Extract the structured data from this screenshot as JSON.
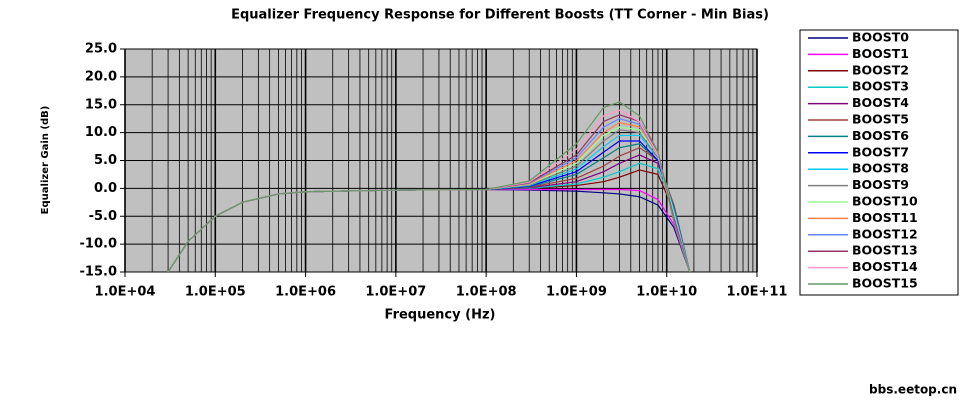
{
  "chart_data": {
    "type": "line",
    "title": "Equalizer Frequency Response for Different Boosts (TT Corner - Min Bias)",
    "x_label": "Frequency (Hz)",
    "y_label": "Equalizer Gain (dB)",
    "watermark": "bbs.eetop.cn",
    "x_log": true,
    "grid": true,
    "legend": "right",
    "plot_background": "#c0c0c0",
    "xlim": [
      10000,
      100000000000
    ],
    "ylim": [
      -15,
      25
    ],
    "xticks": [
      {
        "value": 10000,
        "label": "1.0E+04"
      },
      {
        "value": 100000,
        "label": "1.0E+05"
      },
      {
        "value": 1000000,
        "label": "1.0E+06"
      },
      {
        "value": 10000000,
        "label": "1.0E+07"
      },
      {
        "value": 100000000,
        "label": "1.0E+08"
      },
      {
        "value": 1000000000,
        "label": "1.0E+09"
      },
      {
        "value": 10000000000,
        "label": "1.0E+10"
      },
      {
        "value": 100000000000,
        "label": "1.0E+11"
      }
    ],
    "yticks": [
      {
        "value": 25,
        "label": "25.0"
      },
      {
        "value": 20,
        "label": "20.0"
      },
      {
        "value": 15,
        "label": "15.0"
      },
      {
        "value": 10,
        "label": "10.0"
      },
      {
        "value": 5,
        "label": "5.0"
      },
      {
        "value": 0,
        "label": "0.0"
      },
      {
        "value": -5,
        "label": "-5.0"
      },
      {
        "value": -10,
        "label": "-10.0"
      },
      {
        "value": -15,
        "label": "-15.0"
      }
    ],
    "x": [
      30000,
      50000,
      100000,
      200000,
      500000,
      1000000,
      10000000,
      100000000,
      300000000,
      1000000000,
      2000000000,
      3000000000,
      5000000000,
      8000000000,
      12000000000,
      18000000000
    ],
    "series": [
      {
        "name": "BOOST0",
        "color": "#000080",
        "values": [
          -15,
          -9.5,
          -5,
          -2.5,
          -1,
          -0.6,
          -0.3,
          -0.2,
          -0.3,
          -0.5,
          -0.8,
          -1,
          -1.5,
          -3,
          -7,
          -15
        ]
      },
      {
        "name": "BOOST1",
        "color": "#ff00ff",
        "values": [
          -15,
          -9.5,
          -5,
          -2.5,
          -1,
          -0.6,
          -0.3,
          -0.2,
          -0.2,
          -0.2,
          -0.2,
          -0.2,
          -0.4,
          -2,
          -6.5,
          -15
        ]
      },
      {
        "name": "BOOST2",
        "color": "#800000",
        "values": [
          -15,
          -9.5,
          -5,
          -2.5,
          -1,
          -0.6,
          -0.3,
          -0.2,
          0,
          0.5,
          1.2,
          2,
          3.3,
          2.5,
          -4,
          -15
        ]
      },
      {
        "name": "BOOST3",
        "color": "#00cccc",
        "values": [
          -15,
          -9.5,
          -5,
          -2.5,
          -1,
          -0.6,
          -0.3,
          -0.2,
          0,
          0.8,
          2,
          3,
          4.5,
          3.5,
          -3.5,
          -15
        ]
      },
      {
        "name": "BOOST4",
        "color": "#800080",
        "values": [
          -15,
          -9.5,
          -5,
          -2.5,
          -1,
          -0.6,
          -0.3,
          -0.2,
          0.1,
          1.2,
          3,
          4.5,
          6,
          4.5,
          -3,
          -15
        ]
      },
      {
        "name": "BOOST5",
        "color": "#a04040",
        "values": [
          -15,
          -9.5,
          -5,
          -2.5,
          -1,
          -0.6,
          -0.3,
          -0.2,
          0.2,
          1.8,
          4,
          5.8,
          7.3,
          5,
          -3,
          -15
        ]
      },
      {
        "name": "BOOST6",
        "color": "#008080",
        "values": [
          -15,
          -9.5,
          -5,
          -2.5,
          -1,
          -0.6,
          -0.3,
          -0.2,
          0.3,
          2.5,
          5.5,
          7.3,
          8,
          5,
          -3.5,
          -15
        ]
      },
      {
        "name": "BOOST7",
        "color": "#0000ff",
        "values": [
          -15,
          -9.5,
          -5,
          -2.5,
          -1,
          -0.6,
          -0.3,
          -0.2,
          0.4,
          3,
          6.5,
          8.5,
          8.5,
          5,
          -4,
          -15
        ]
      },
      {
        "name": "BOOST8",
        "color": "#00ccff",
        "values": [
          -15,
          -9.5,
          -5,
          -2.5,
          -1,
          -0.6,
          -0.3,
          -0.2,
          0.5,
          3.5,
          7.5,
          9.5,
          9.5,
          5.5,
          -4,
          -15
        ]
      },
      {
        "name": "BOOST9",
        "color": "#808080",
        "values": [
          -15,
          -9.5,
          -5,
          -2.5,
          -1,
          -0.6,
          -0.3,
          -0.2,
          0.6,
          4,
          8.5,
          10.5,
          10,
          5.5,
          -4.5,
          -15
        ]
      },
      {
        "name": "BOOST10",
        "color": "#99ff99",
        "values": [
          -15,
          -9.5,
          -5,
          -2.5,
          -1,
          -0.6,
          -0.3,
          -0.2,
          0.7,
          4.5,
          9.5,
          11,
          10.5,
          6,
          -4.5,
          -15
        ]
      },
      {
        "name": "BOOST11",
        "color": "#ff8040",
        "values": [
          -15,
          -9.5,
          -5,
          -2.5,
          -1,
          -0.6,
          -0.3,
          -0.2,
          0.8,
          5,
          10,
          11.8,
          11,
          6,
          -5,
          -15
        ]
      },
      {
        "name": "BOOST12",
        "color": "#6688ff",
        "values": [
          -15,
          -9.5,
          -5,
          -2.5,
          -1,
          -0.6,
          -0.3,
          -0.2,
          0.9,
          5.5,
          11,
          12.5,
          11.5,
          6,
          -5,
          -15
        ]
      },
      {
        "name": "BOOST13",
        "color": "#993366",
        "values": [
          -15,
          -9.5,
          -5,
          -2.5,
          -1,
          -0.6,
          -0.3,
          -0.2,
          1,
          6,
          12,
          13.2,
          12,
          6.5,
          -5.5,
          -15
        ]
      },
      {
        "name": "BOOST14",
        "color": "#ff99cc",
        "values": [
          -15,
          -9.5,
          -5,
          -2.5,
          -1,
          -0.6,
          -0.3,
          -0.2,
          1.1,
          7,
          13,
          14,
          12,
          6,
          -6,
          -15
        ]
      },
      {
        "name": "BOOST15",
        "color": "#669966",
        "values": [
          -15,
          -9.5,
          -5,
          -2.5,
          -1,
          -0.6,
          -0.3,
          -0.2,
          1.3,
          8,
          14.5,
          15.5,
          13,
          6.5,
          -6,
          -15
        ]
      }
    ]
  }
}
